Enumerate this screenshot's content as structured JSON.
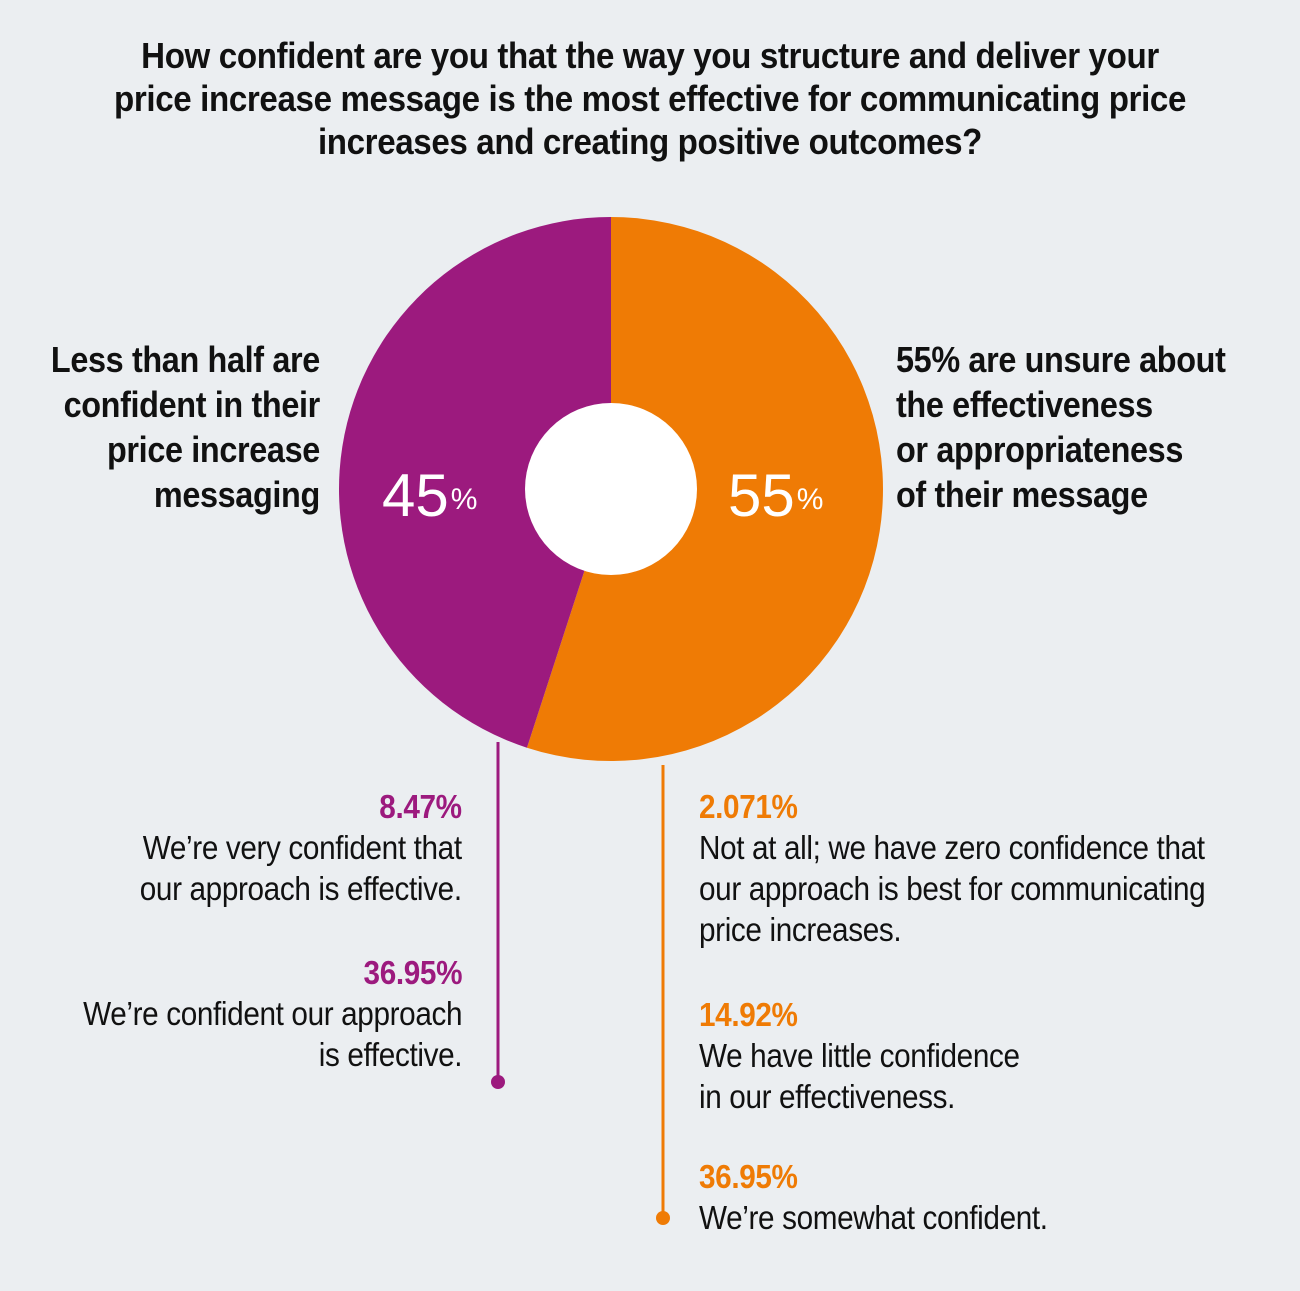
{
  "title_lines": [
    "How confident are you that the way you structure and deliver your",
    "price increase message is the most effective for communicating price",
    "increases and creating positive outcomes?"
  ],
  "colors": {
    "purple": "#9c1a7e",
    "orange": "#ef7b05",
    "background": "#ebeef1",
    "hole": "#ffffff"
  },
  "left_label_lines": [
    "Less than half are",
    "confident in their",
    "price increase",
    "messaging"
  ],
  "right_label_lines": [
    "55% are unsure about",
    "the effectiveness",
    "or appropriateness",
    "of their message"
  ],
  "left_pct": {
    "num": "45",
    "sign": "%"
  },
  "right_pct": {
    "num": "55",
    "sign": "%"
  },
  "left_items": [
    {
      "value": "8.47%",
      "lines": [
        "We’re very confident that",
        "our approach is effective."
      ]
    },
    {
      "value": "36.95%",
      "lines": [
        "We’re confident our approach",
        "is effective."
      ]
    }
  ],
  "right_items": [
    {
      "value": "2.071%",
      "lines": [
        "Not at all; we have zero confidence that",
        "our approach is best for communicating",
        "price increases."
      ]
    },
    {
      "value": "14.92%",
      "lines": [
        "We have little confidence",
        "in our effectiveness."
      ]
    },
    {
      "value": "36.95%",
      "lines": [
        "We’re somewhat confident."
      ]
    }
  ],
  "chart_data": {
    "type": "pie",
    "donut": true,
    "start": "12 o'clock",
    "direction": "clockwise",
    "slices": [
      {
        "label": "55% are unsure about the effectiveness or appropriateness of their message",
        "value": 55,
        "color": "#ef7b05"
      },
      {
        "label": "Less than half are confident in their price increase messaging",
        "value": 45,
        "color": "#9c1a7e"
      }
    ]
  }
}
